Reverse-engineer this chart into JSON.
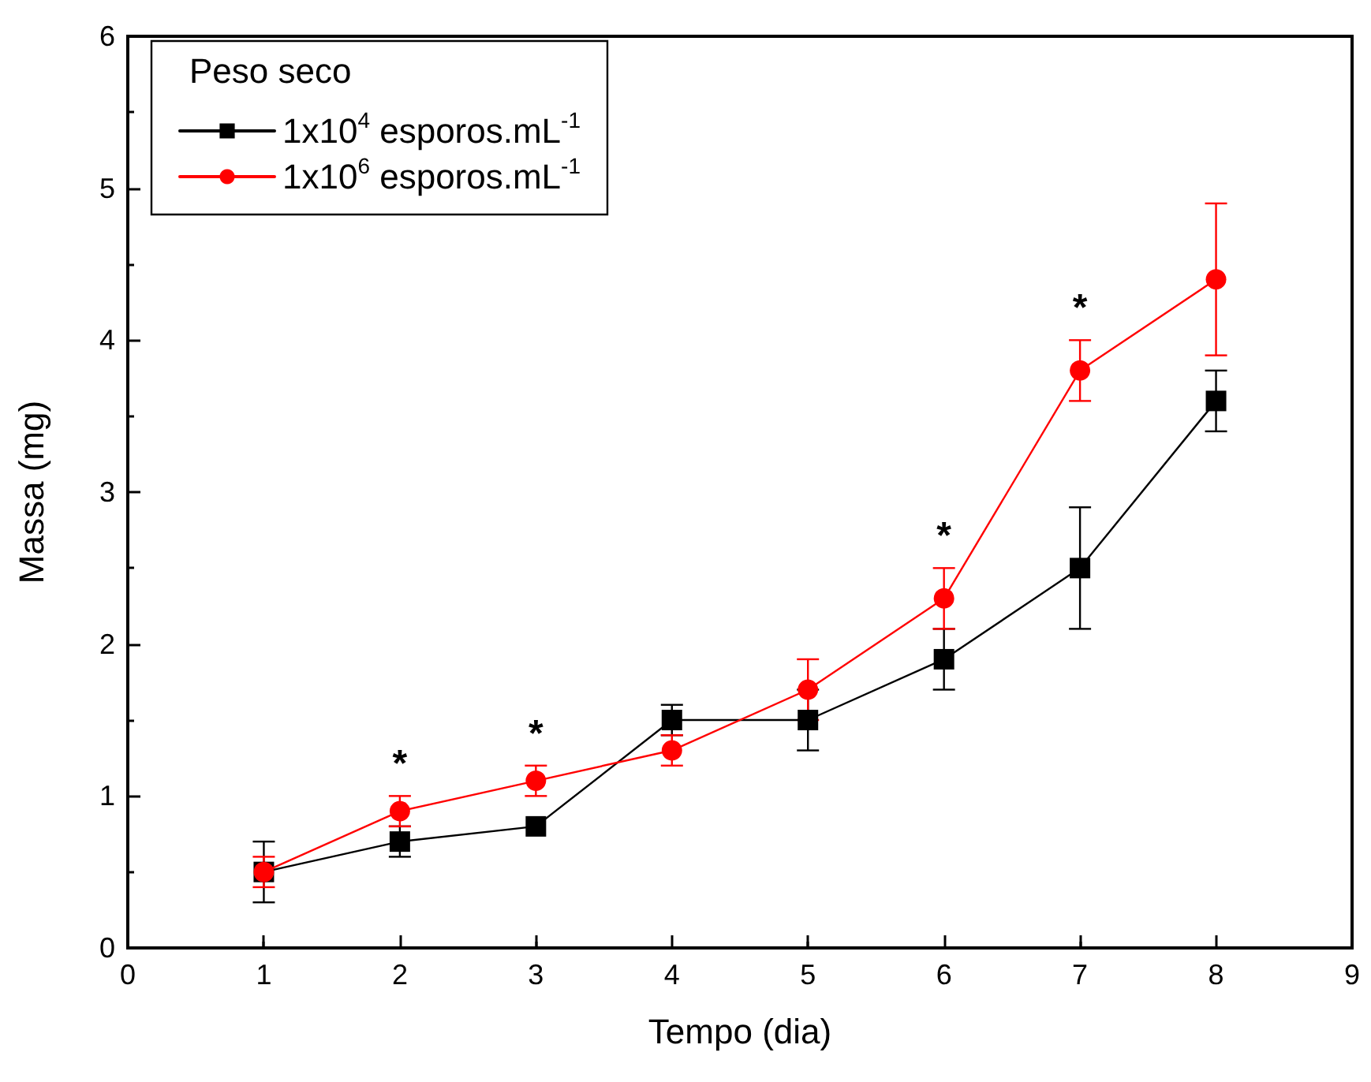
{
  "chart_data": {
    "type": "line",
    "xlabel": "Tempo (dia)",
    "ylabel": "Massa (mg)",
    "legend_title": "Peso seco",
    "x": [
      1,
      2,
      3,
      4,
      5,
      6,
      7,
      8
    ],
    "series": [
      {
        "name": "1x10$^{4}$ esporos.mL$^{-1}$",
        "color": "#000000",
        "marker": "square",
        "values": [
          0.5,
          0.7,
          0.8,
          1.5,
          1.5,
          1.9,
          2.5,
          3.6
        ],
        "errors": [
          0.2,
          0.1,
          null,
          0.1,
          0.2,
          0.2,
          0.4,
          0.2
        ]
      },
      {
        "name": "1x10$^{6}$ esporos.mL$^{-1}$",
        "color": "#ff0000",
        "marker": "circle",
        "values": [
          0.5,
          0.9,
          1.1,
          1.3,
          1.7,
          2.3,
          3.8,
          4.4
        ],
        "errors": [
          0.1,
          0.1,
          0.1,
          0.1,
          0.2,
          0.2,
          0.2,
          0.5
        ]
      }
    ],
    "annotations": [
      {
        "text": "*",
        "x": 2,
        "y": 1.0
      },
      {
        "text": "*",
        "x": 3,
        "y": 1.2
      },
      {
        "text": "*",
        "x": 6,
        "y": 2.5
      },
      {
        "text": "*",
        "x": 7,
        "y": 4.0
      }
    ],
    "xlim": [
      0,
      9
    ],
    "xticks": [
      0,
      1,
      2,
      3,
      4,
      5,
      6,
      7,
      8,
      9
    ],
    "ylim": [
      0,
      6
    ],
    "yticks": [
      0,
      1,
      2,
      3,
      4,
      5,
      6
    ],
    "grid": false,
    "legend": "top left",
    "line_style": "solid"
  }
}
